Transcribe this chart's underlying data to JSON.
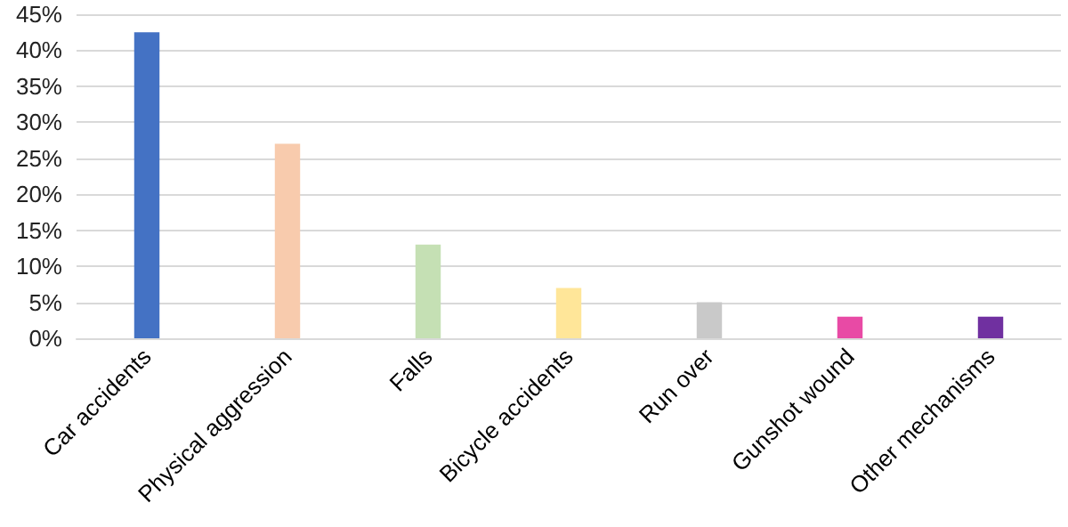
{
  "chart_data": {
    "type": "bar",
    "categories": [
      "Car accidents",
      "Physical aggression",
      "Falls",
      "Bicycle accidents",
      "Run over",
      "Gunshot wound",
      "Other mechanisms"
    ],
    "values": [
      42.5,
      27,
      13,
      7,
      5,
      3,
      3
    ],
    "colors": [
      "#4472c4",
      "#f8cbad",
      "#c5e0b4",
      "#ffe699",
      "#c9c9c9",
      "#e84aa5",
      "#7030a0"
    ],
    "ylim": [
      0,
      45
    ],
    "yticks": [
      {
        "value": 0,
        "label": "0%"
      },
      {
        "value": 5,
        "label": "5%"
      },
      {
        "value": 10,
        "label": "10%"
      },
      {
        "value": 15,
        "label": "15%"
      },
      {
        "value": 20,
        "label": "20%"
      },
      {
        "value": 25,
        "label": "25%"
      },
      {
        "value": 30,
        "label": "30%"
      },
      {
        "value": 35,
        "label": "35%"
      },
      {
        "value": 40,
        "label": "40%"
      },
      {
        "value": 45,
        "label": "45%"
      }
    ],
    "grid": "y"
  }
}
